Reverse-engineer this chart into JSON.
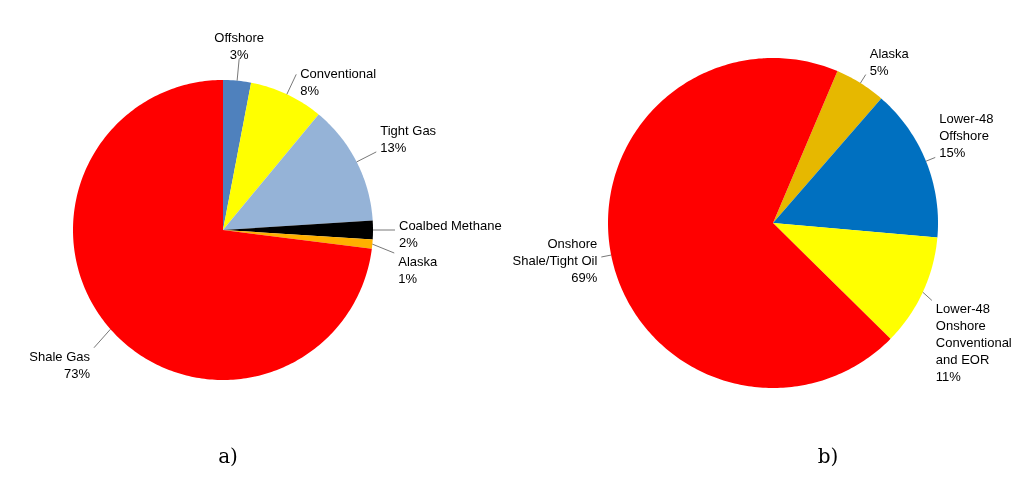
{
  "chart_data": [
    {
      "type": "pie",
      "categories": [
        "Offshore",
        "Conventional",
        "Tight Gas",
        "Coalbed Methane",
        "Alaska",
        "Shale Gas"
      ],
      "values": [
        3,
        8,
        13,
        2,
        1,
        73
      ],
      "value_labels": [
        "3%",
        "8%",
        "13%",
        "2%",
        "1%",
        "73%"
      ],
      "colors": [
        "#4f81bd",
        "#ffff00",
        "#95b3d7",
        "#000000",
        "#ffb000",
        "#ff0000"
      ],
      "annotations": [
        "a)"
      ]
    },
    {
      "type": "pie",
      "categories": [
        "Alaska",
        "Lower-48 Offshore",
        "Lower-48 Onshore Conventional and EOR",
        "Onshore Shale/Tight Oil"
      ],
      "values": [
        5,
        15,
        11,
        69
      ],
      "value_labels": [
        "5%",
        "15%",
        "11%",
        "69%"
      ],
      "colors": [
        "#e6b800",
        "#0070c0",
        "#ffff00",
        "#ff0000"
      ],
      "annotations": [
        "b)"
      ]
    }
  ]
}
